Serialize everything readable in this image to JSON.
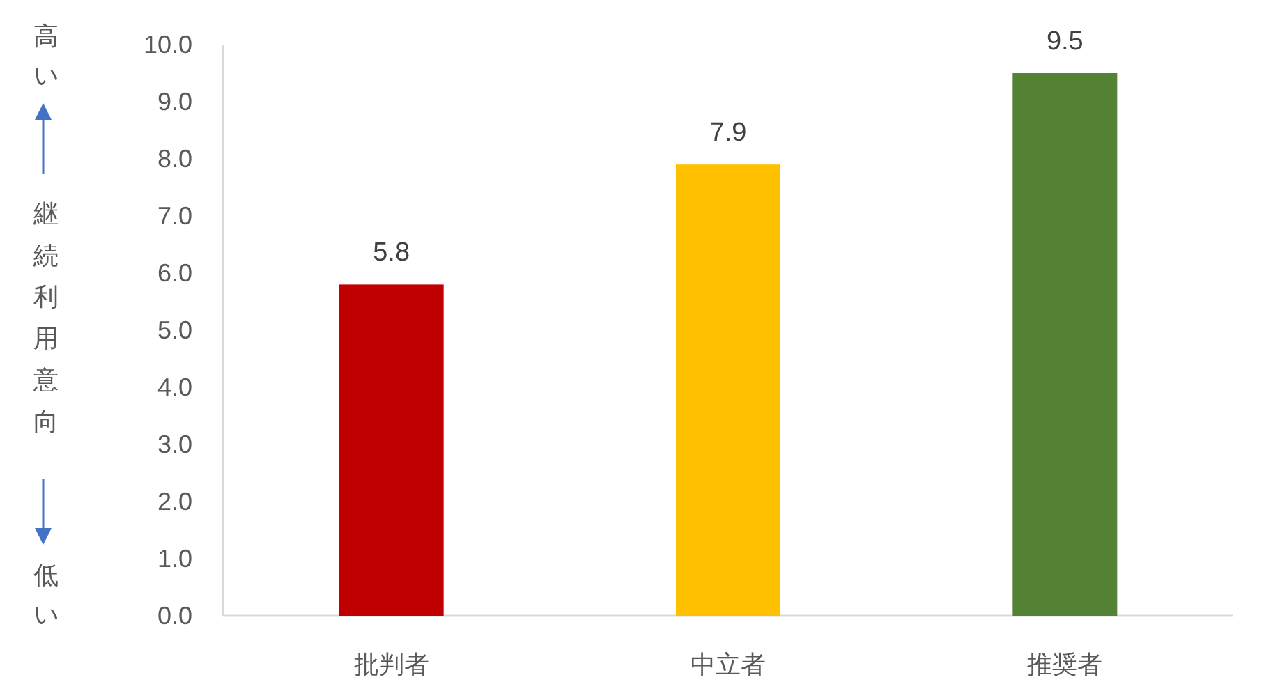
{
  "chart_data": {
    "type": "bar",
    "categories": [
      "批判者",
      "中立者",
      "推奨者"
    ],
    "values": [
      5.8,
      7.9,
      9.5
    ],
    "colors": [
      "#c00000",
      "#ffc000",
      "#548235"
    ],
    "ylim": [
      0,
      10
    ],
    "yticks": [
      {
        "value": 0,
        "label": "0.0"
      },
      {
        "value": 1,
        "label": "1.0"
      },
      {
        "value": 2,
        "label": "2.0"
      },
      {
        "value": 3,
        "label": "3.0"
      },
      {
        "value": 4,
        "label": "4.0"
      },
      {
        "value": 5,
        "label": "5.0"
      },
      {
        "value": 6,
        "label": "6.0"
      },
      {
        "value": 7,
        "label": "7.0"
      },
      {
        "value": 8,
        "label": "8.0"
      },
      {
        "value": 9,
        "label": "9.0"
      },
      {
        "value": 10,
        "label": "10.0"
      }
    ],
    "ylabel": "継続利用意向",
    "annotations": [
      "高い",
      "低い"
    ],
    "data_labels": true
  }
}
